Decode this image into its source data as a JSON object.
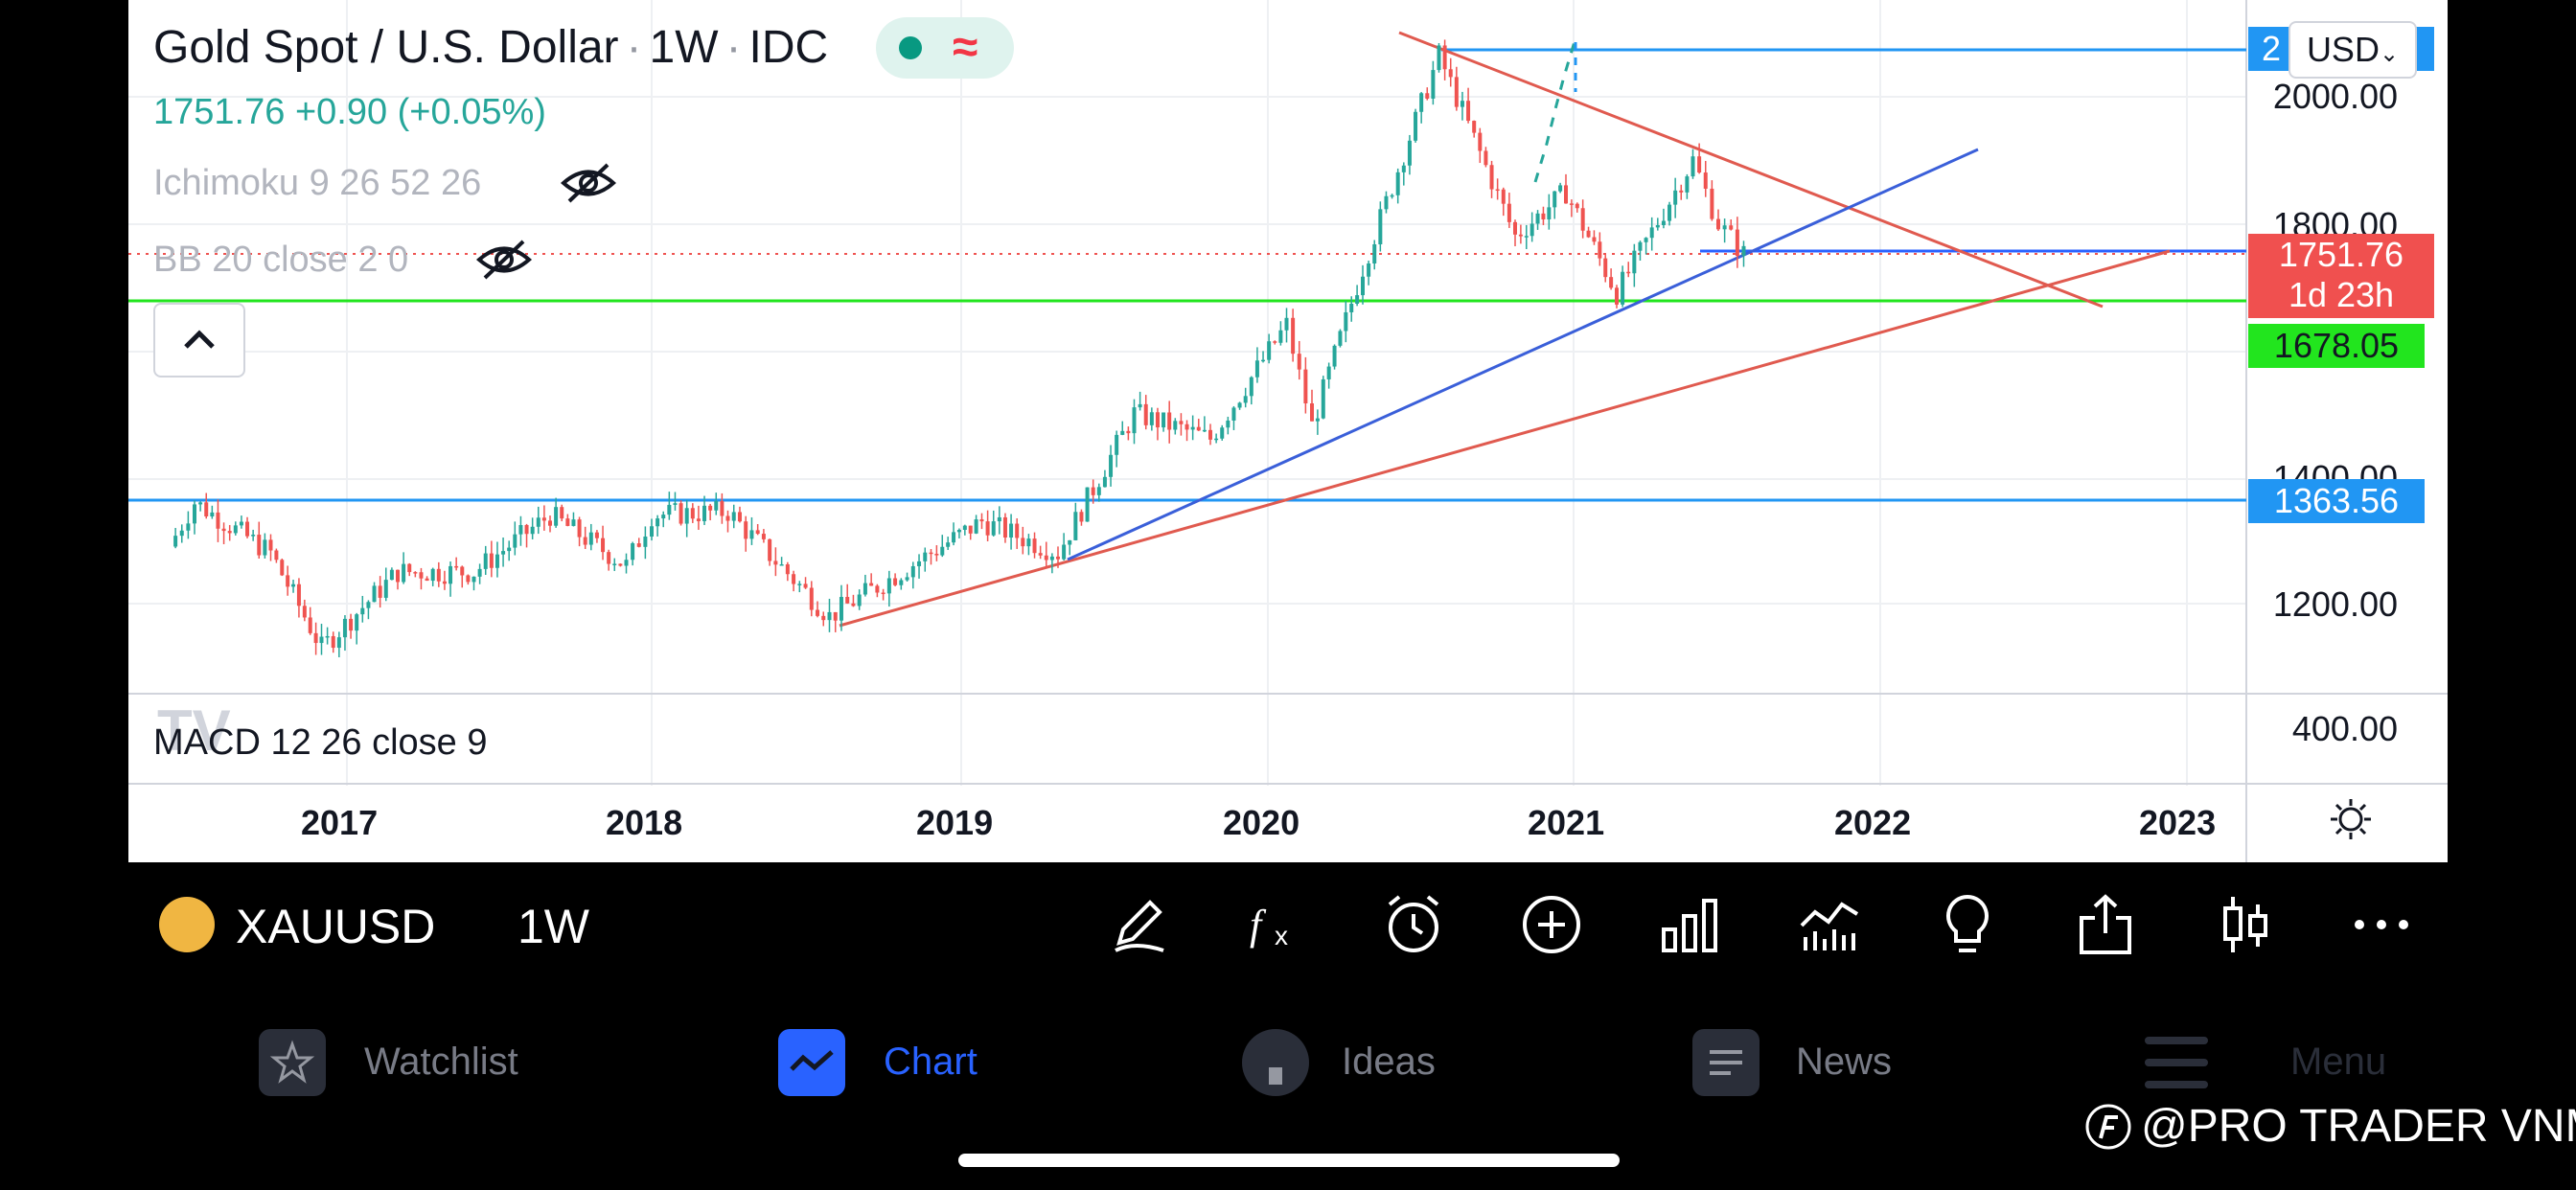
{
  "header": {
    "symbol_title": "Gold Spot / U.S. Dollar",
    "interval": "1W",
    "exchange": "IDC",
    "last_price": "1751.76",
    "change": "+0.90",
    "change_pct": "(+0.05%)"
  },
  "indicators": [
    {
      "label": "Ichimoku 9 26 52 26"
    },
    {
      "label": "BB 20 close 2 0"
    }
  ],
  "macd_label": "MACD 12 26 close 9",
  "currency_selector": "USD",
  "price_axis": [
    "2000.00",
    "1800.00",
    "1400.00",
    "1200.00",
    "400.00"
  ],
  "price_tags": {
    "top_partial": "2",
    "current_price": "1751.76",
    "countdown": "1d 23h",
    "green_level": "1678.05",
    "blue_level": "1363.56"
  },
  "time_axis": [
    "2017",
    "2018",
    "2019",
    "2020",
    "2021",
    "2022",
    "2023"
  ],
  "chart_data": {
    "type": "candlestick",
    "symbol": "XAUUSD",
    "y_axis_ticks": [
      2000,
      1800,
      1400,
      1200
    ],
    "macd_axis_tick": 400,
    "x_axis_ticks": [
      "2017",
      "2018",
      "2019",
      "2020",
      "2021",
      "2022",
      "2023"
    ],
    "horizontal_levels": [
      2075,
      1751.76,
      1678.05,
      1363.56
    ],
    "last_close": 1751.76,
    "approx_weekly_close_path": [
      {
        "date": "2016-06",
        "close": 1290
      },
      {
        "date": "2016-07",
        "close": 1360
      },
      {
        "date": "2016-10",
        "close": 1280
      },
      {
        "date": "2016-12",
        "close": 1130
      },
      {
        "date": "2017-03",
        "close": 1250
      },
      {
        "date": "2017-06",
        "close": 1250
      },
      {
        "date": "2017-09",
        "close": 1340
      },
      {
        "date": "2017-12",
        "close": 1260
      },
      {
        "date": "2018-01",
        "close": 1340
      },
      {
        "date": "2018-04",
        "close": 1345
      },
      {
        "date": "2018-08",
        "close": 1180
      },
      {
        "date": "2018-12",
        "close": 1280
      },
      {
        "date": "2019-02",
        "close": 1330
      },
      {
        "date": "2019-05",
        "close": 1280
      },
      {
        "date": "2019-08",
        "close": 1500
      },
      {
        "date": "2019-11",
        "close": 1460
      },
      {
        "date": "2020-02",
        "close": 1640
      },
      {
        "date": "2020-03",
        "close": 1480
      },
      {
        "date": "2020-05",
        "close": 1730
      },
      {
        "date": "2020-08",
        "close": 2065
      },
      {
        "date": "2020-11",
        "close": 1780
      },
      {
        "date": "2021-01",
        "close": 1850
      },
      {
        "date": "2021-03",
        "close": 1690
      },
      {
        "date": "2021-06",
        "close": 1900
      },
      {
        "date": "2021-07",
        "close": 1800
      },
      {
        "date": "2021-08",
        "close": 1752
      }
    ]
  },
  "toolbar": {
    "symbol": "XAUUSD",
    "interval": "1W",
    "icons": [
      "pen-icon",
      "fx-icon",
      "alarm-icon",
      "add-icon",
      "bar-chart-icon",
      "indicators-icon",
      "idea-icon",
      "share-icon",
      "candles-icon",
      "more-icon"
    ]
  },
  "nav": {
    "items": [
      {
        "label": "Watchlist",
        "icon": "star-icon"
      },
      {
        "label": "Chart",
        "icon": "chart-icon"
      },
      {
        "label": "Ideas",
        "icon": "bulb-icon"
      },
      {
        "label": "News",
        "icon": "newspaper-icon"
      },
      {
        "label": "Menu",
        "icon": "hamburger-icon"
      }
    ]
  },
  "watermark": "@PRO TRADER VNM",
  "colors": {
    "up": "#26a69a",
    "down": "#ef5350",
    "accent_blue": "#2962ff",
    "tag_blue": "#2196f3",
    "tag_green": "#22e51e",
    "tag_red": "#f0504f"
  }
}
